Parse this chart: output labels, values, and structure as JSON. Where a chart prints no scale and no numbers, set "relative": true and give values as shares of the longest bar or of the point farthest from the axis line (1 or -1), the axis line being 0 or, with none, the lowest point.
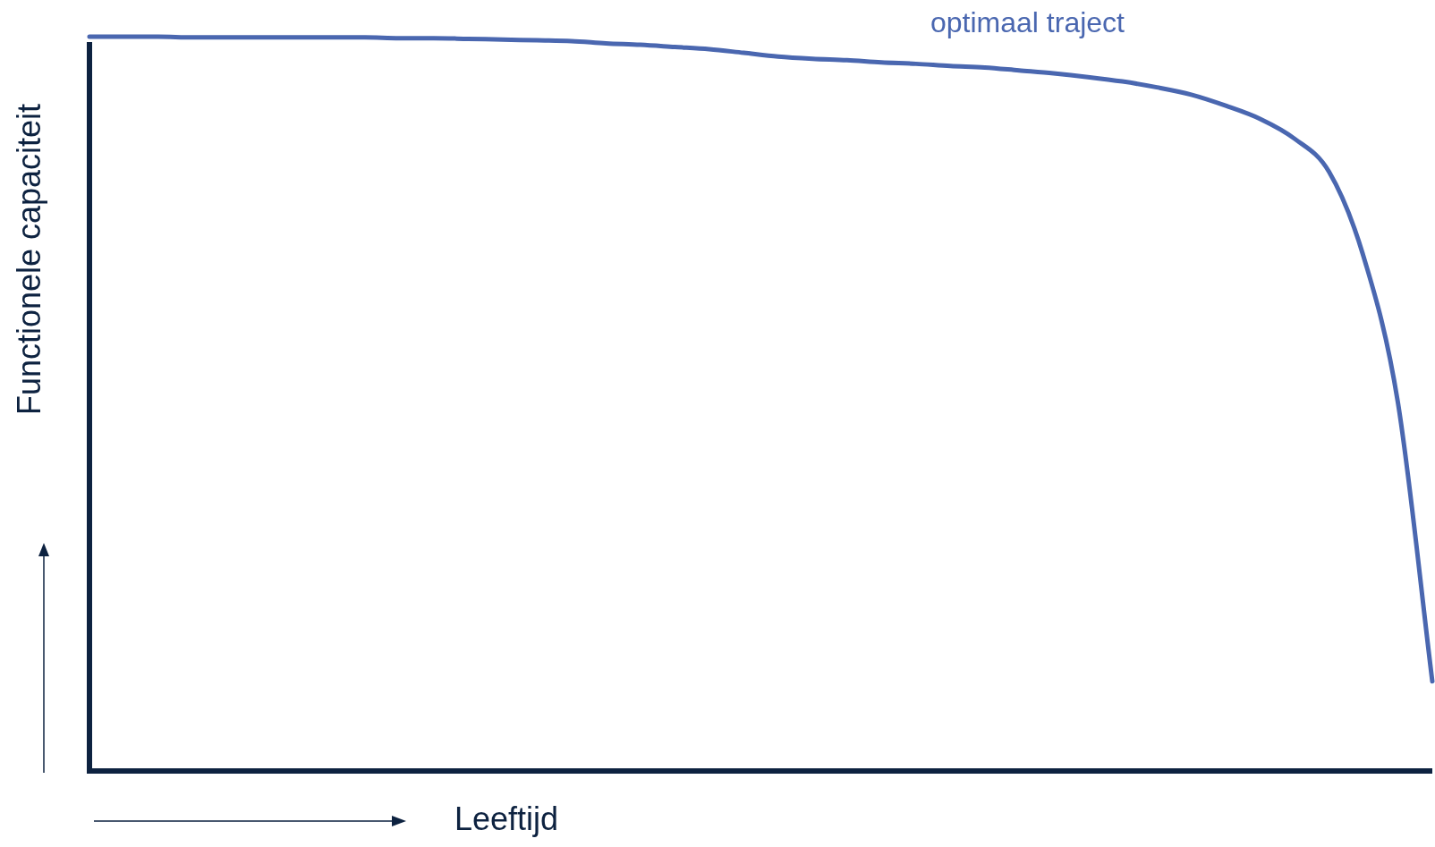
{
  "chart_data": {
    "type": "line",
    "relative": true,
    "xlabel": "Leeftijd",
    "ylabel": "Functionele capaciteit",
    "legend": false,
    "marker": "none",
    "categories": [
      null,
      null,
      null,
      null,
      null,
      null,
      null,
      null,
      null,
      null,
      null,
      null,
      null,
      null,
      null,
      null,
      null,
      null,
      null,
      null,
      null,
      null,
      null,
      null,
      null,
      null,
      null,
      null,
      null,
      null,
      null,
      null,
      null,
      null,
      null,
      null,
      null,
      null,
      null,
      null
    ],
    "series": [
      {
        "name": "optimaal traject",
        "color": "#4a67b0",
        "values": [
          1.0,
          1.0,
          1.0,
          0.999,
          0.999,
          0.999,
          0.999,
          0.999,
          0.999,
          0.998,
          0.998,
          0.997,
          0.996,
          0.995,
          0.994,
          0.991,
          0.989,
          0.986,
          0.983,
          0.978,
          0.973,
          0.97,
          0.968,
          0.965,
          0.963,
          0.96,
          0.958,
          0.954,
          0.95,
          0.945,
          0.939,
          0.931,
          0.921,
          0.906,
          0.888,
          0.861,
          0.816,
          0.701,
          0.502,
          0.122
        ]
      }
    ]
  }
}
